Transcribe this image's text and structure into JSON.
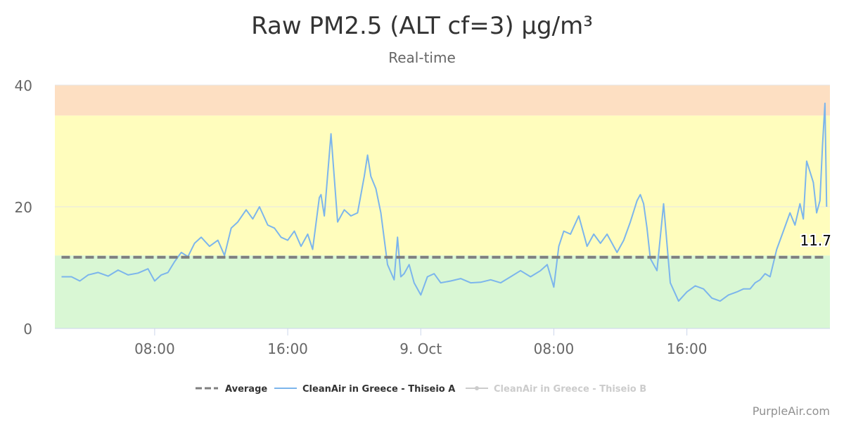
{
  "chart_data": {
    "type": "line",
    "title": "Raw PM2.5 (ALT cf=3) µg/m³",
    "subtitle": "Real-time",
    "xlabel": "",
    "ylabel": "",
    "ylim": [
      0,
      40
    ],
    "yticks": [
      "0",
      "20",
      "40"
    ],
    "xlim": [
      2.0,
      48.6
    ],
    "x_unit": "hours from 00:00 on 8 Oct",
    "xticks": [
      {
        "x": 8,
        "label": "08:00"
      },
      {
        "x": 16,
        "label": "16:00"
      },
      {
        "x": 24,
        "label": "9. Oct"
      },
      {
        "x": 32,
        "label": "08:00"
      },
      {
        "x": 40,
        "label": "16:00"
      }
    ],
    "bands": [
      {
        "from": 0,
        "to": 12,
        "color": "#d9f7d4"
      },
      {
        "from": 12,
        "to": 35,
        "color": "#fffdbd"
      },
      {
        "from": 35,
        "to": 40,
        "color": "#fddfc2"
      }
    ],
    "grid": true,
    "legend_position": "bottom-center",
    "series": [
      {
        "name": "Average",
        "color": "#7f7f7f",
        "style": "dashed",
        "value": 11.7,
        "label": "11.7"
      },
      {
        "name": "CleanAir in Greece - Thiseio A",
        "color": "#7cb5ec",
        "style": "solid",
        "x": [
          2.4,
          3.0,
          3.5,
          4.0,
          4.6,
          5.2,
          5.8,
          6.4,
          7.0,
          7.6,
          8.0,
          8.4,
          8.8,
          9.2,
          9.6,
          10.0,
          10.4,
          10.8,
          11.3,
          11.8,
          12.2,
          12.6,
          13.0,
          13.5,
          13.9,
          14.3,
          14.8,
          15.2,
          15.6,
          16.0,
          16.4,
          16.8,
          17.2,
          17.5,
          17.9,
          18.0,
          18.2,
          18.6,
          19.0,
          19.4,
          19.8,
          20.2,
          20.6,
          20.8,
          21.0,
          21.3,
          21.6,
          22.0,
          22.4,
          22.6,
          22.8,
          23.0,
          23.3,
          23.6,
          24.0,
          24.4,
          24.8,
          25.2,
          25.8,
          26.4,
          27.0,
          27.6,
          28.2,
          28.8,
          29.4,
          30.0,
          30.6,
          31.2,
          31.6,
          32.0,
          32.3,
          32.6,
          33.0,
          33.5,
          34.0,
          34.4,
          34.8,
          35.2,
          35.8,
          36.2,
          36.6,
          37.0,
          37.2,
          37.4,
          37.6,
          37.8,
          38.2,
          38.6,
          39.0,
          39.5,
          40.0,
          40.5,
          41.0,
          41.5,
          42.0,
          42.5,
          43.0,
          43.4,
          43.8,
          44.1,
          44.4,
          44.7,
          45.0,
          45.4,
          45.8,
          46.2,
          46.5,
          46.8,
          47.0,
          47.2,
          47.6,
          47.8,
          48.0,
          48.15,
          48.3,
          48.4
        ],
        "values": [
          8.5,
          8.5,
          7.8,
          8.8,
          9.2,
          8.6,
          9.6,
          8.8,
          9.1,
          9.8,
          7.8,
          8.8,
          9.2,
          11.0,
          12.5,
          11.8,
          14.0,
          15.0,
          13.5,
          14.5,
          12.0,
          16.5,
          17.5,
          19.5,
          18.0,
          20.0,
          17.0,
          16.5,
          15.0,
          14.5,
          16.0,
          13.5,
          15.5,
          13.0,
          21.5,
          22.0,
          18.5,
          32.0,
          17.5,
          19.5,
          18.5,
          19.0,
          25.0,
          28.5,
          25.0,
          23.0,
          19.0,
          10.5,
          8.0,
          15.0,
          8.5,
          9.0,
          10.5,
          7.5,
          5.5,
          8.5,
          9.0,
          7.5,
          7.8,
          8.2,
          7.5,
          7.6,
          8.0,
          7.5,
          8.5,
          9.5,
          8.5,
          9.5,
          10.5,
          6.8,
          13.5,
          16.0,
          15.5,
          18.5,
          13.5,
          15.5,
          14.0,
          15.5,
          12.5,
          14.5,
          17.5,
          21.0,
          22.0,
          20.5,
          16.5,
          11.5,
          9.5,
          20.5,
          7.5,
          4.5,
          6.0,
          7.0,
          6.5,
          5.0,
          4.5,
          5.5,
          6.0,
          6.5,
          6.5,
          7.5,
          8.0,
          9.0,
          8.5,
          13.0,
          16.0,
          19.0,
          17.0,
          20.5,
          18.0,
          27.5,
          24.0,
          19.0,
          21.0,
          30.0,
          37.0,
          20.0
        ]
      },
      {
        "name": "CleanAir in Greece - Thiseio B",
        "color": "#cccccc",
        "style": "solid",
        "visible": false
      }
    ]
  },
  "credit": "PurpleAir.com"
}
